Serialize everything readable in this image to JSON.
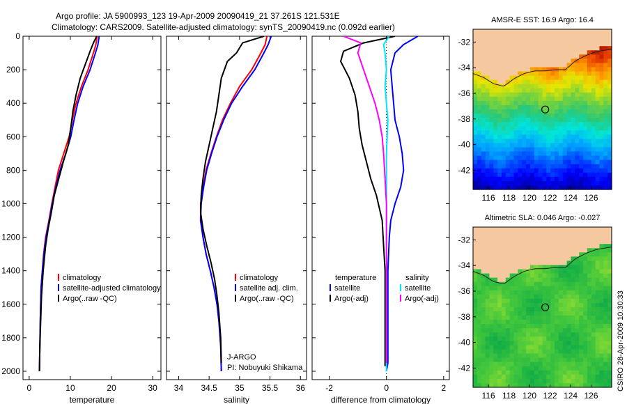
{
  "header": {
    "line1": "Argo profile: JA 5900993_123 19-Apr-2009 20090419_21 37.261S 121.531E",
    "line2": "Climatology: CARS2009. Satellite-adjusted climatology: synTS_20090419.nc (0.092d earlier)"
  },
  "credit": "CSIRO 28-Apr-2009 10:30:33",
  "colors": {
    "climatology": "#ff0000",
    "satellite": "#0000ff",
    "argo": "#000000",
    "sat_sal": "#00e5ff",
    "argo_sal": "#ff00ff",
    "land": "#f5c8a0"
  },
  "chart_data": [
    {
      "type": "line",
      "name": "temperature-profile",
      "xlabel": "temperature",
      "ylim": [
        2050,
        0
      ],
      "xlim": [
        -1.5,
        32
      ],
      "xticks": [
        "0",
        "10",
        "20",
        "30"
      ],
      "yticks": [
        "0",
        "200",
        "400",
        "600",
        "800",
        "1000",
        "1200",
        "1400",
        "1600",
        "1800",
        "2000"
      ],
      "legend": [
        "climatology",
        "satellite-adjusted climatology",
        "Argo(..raw -QC)"
      ],
      "series": [
        {
          "name": "climatology",
          "color": "#ff0000",
          "x": [
            16.5,
            16.2,
            15.6,
            14.3,
            12.7,
            11.4,
            10.5,
            9.7,
            8.4,
            7.1,
            6.3,
            5.5,
            4.8,
            4.0,
            3.5,
            3.2,
            2.9,
            2.7,
            2.6,
            2.5
          ],
          "y": [
            0,
            50,
            100,
            200,
            300,
            400,
            500,
            600,
            700,
            800,
            900,
            1000,
            1100,
            1200,
            1300,
            1400,
            1500,
            1700,
            1850,
            2000
          ]
        },
        {
          "name": "satellite-adjusted climatology",
          "color": "#0000ff",
          "x": [
            17.0,
            16.7,
            16.1,
            14.8,
            13.1,
            11.8,
            10.9,
            10.1,
            8.9,
            7.5,
            6.5,
            5.6,
            4.9,
            4.1,
            3.6,
            3.2,
            2.9,
            2.7,
            2.6,
            2.5
          ],
          "y": [
            0,
            50,
            100,
            200,
            300,
            400,
            500,
            600,
            700,
            800,
            900,
            1000,
            1100,
            1200,
            1300,
            1400,
            1500,
            1700,
            1850,
            2000
          ]
        },
        {
          "name": "Argo(..raw -QC)",
          "color": "#000000",
          "x": [
            16.4,
            15.6,
            14.8,
            13.9,
            12.4,
            11.4,
            10.6,
            10.1,
            9.5,
            8.3,
            7.2,
            6.1,
            5.4,
            4.6,
            4.0,
            3.4,
            3.0,
            2.8,
            2.6,
            2.5
          ],
          "y": [
            0,
            40,
            90,
            150,
            250,
            350,
            450,
            550,
            650,
            750,
            850,
            950,
            1050,
            1150,
            1250,
            1400,
            1550,
            1700,
            1850,
            2000
          ]
        }
      ]
    },
    {
      "type": "line",
      "name": "salinity-profile",
      "xlabel": "salinity",
      "ylim": [
        2050,
        0
      ],
      "xlim": [
        33.8,
        36.1
      ],
      "xticks": [
        "34",
        "34.5",
        "35",
        "35.5",
        "36"
      ],
      "legend": [
        "climatology",
        "satellite adj. clim.",
        "Argo(..raw -QC)"
      ],
      "annotation": [
        "J-ARGO",
        "PI: Nobuyuki Shikama"
      ],
      "series": [
        {
          "name": "climatology",
          "color": "#ff0000",
          "x": [
            35.45,
            35.42,
            35.35,
            35.2,
            35.0,
            34.85,
            34.72,
            34.62,
            34.53,
            34.45,
            34.4,
            34.36,
            34.36,
            34.4,
            34.45,
            34.52,
            34.58,
            34.63,
            34.66,
            34.69,
            34.7
          ],
          "y": [
            0,
            50,
            100,
            200,
            300,
            400,
            500,
            600,
            700,
            800,
            900,
            1000,
            1100,
            1200,
            1300,
            1400,
            1500,
            1600,
            1700,
            1850,
            2000
          ]
        },
        {
          "name": "satellite adj. clim.",
          "color": "#0000ff",
          "x": [
            35.52,
            35.47,
            35.4,
            35.25,
            35.05,
            34.87,
            34.74,
            34.63,
            34.54,
            34.46,
            34.41,
            34.37,
            34.36,
            34.4,
            34.45,
            34.52,
            34.58,
            34.63,
            34.66,
            34.69,
            34.7
          ],
          "y": [
            0,
            50,
            100,
            200,
            300,
            400,
            500,
            600,
            700,
            800,
            900,
            1000,
            1100,
            1200,
            1300,
            1400,
            1500,
            1600,
            1700,
            1850,
            2000
          ]
        },
        {
          "name": "Argo(..raw -QC)",
          "color": "#000000",
          "x": [
            35.4,
            35.05,
            34.95,
            34.8,
            34.7,
            34.66,
            34.62,
            34.56,
            34.5,
            34.44,
            34.4,
            34.37,
            34.36,
            34.4,
            34.46,
            34.53,
            34.59,
            34.63,
            34.66,
            34.69,
            34.7
          ],
          "y": [
            0,
            40,
            100,
            150,
            250,
            350,
            450,
            550,
            650,
            750,
            850,
            950,
            1050,
            1150,
            1250,
            1350,
            1450,
            1550,
            1650,
            1800,
            1950
          ]
        }
      ]
    },
    {
      "type": "line",
      "name": "difference-profile",
      "xlabel": "difference from climatology",
      "ylim": [
        2050,
        0
      ],
      "xlim": [
        -2.6,
        2.2
      ],
      "xticks": [
        "-2",
        "0",
        "2"
      ],
      "legend_groups": [
        {
          "title": "temperature",
          "items": [
            "satellite",
            "Argo(-adj)"
          ]
        },
        {
          "title": "salinity",
          "items": [
            "satellite",
            "Argo(-adj)"
          ]
        }
      ],
      "series": [
        {
          "name": "temperature satellite",
          "color": "#0000ff",
          "x": [
            1.1,
            0.6,
            0.3,
            0.15,
            0.2,
            0.25,
            0.3,
            0.45,
            0.55,
            0.6,
            0.5,
            0.3,
            0.15,
            0.1,
            0.05,
            0.05,
            0.05,
            0.05,
            0.0
          ],
          "y": [
            0,
            50,
            100,
            200,
            300,
            400,
            500,
            600,
            700,
            800,
            900,
            1000,
            1100,
            1200,
            1400,
            1600,
            1800,
            1950,
            2000
          ]
        },
        {
          "name": "temperature Argo(-adj)",
          "color": "#000000",
          "x": [
            0.3,
            -0.8,
            -1.5,
            -1.6,
            -1.3,
            -1.1,
            -1.0,
            -0.95,
            -0.85,
            -0.7,
            -0.55,
            -0.35,
            -0.15,
            -0.1,
            -0.05,
            -0.05,
            -0.05,
            -0.05
          ],
          "y": [
            0,
            40,
            90,
            150,
            250,
            350,
            450,
            550,
            650,
            750,
            850,
            950,
            1100,
            1250,
            1400,
            1600,
            1800,
            1970
          ]
        },
        {
          "name": "salinity satellite",
          "color": "#00e5ff",
          "x": [
            0.1,
            -0.1,
            -0.05,
            0.0,
            -0.05,
            0.0,
            0.05,
            0.0,
            0.0,
            0.0,
            0.0,
            0.0,
            0.0
          ],
          "y": [
            0,
            50,
            100,
            200,
            300,
            400,
            500,
            700,
            900,
            1100,
            1400,
            1700,
            2000
          ]
        },
        {
          "name": "salinity Argo(-adj)",
          "color": "#ff00ff",
          "x": [
            -1.5,
            -0.9,
            -1.0,
            -0.8,
            -0.6,
            -0.4,
            -0.25,
            -0.15,
            -0.1,
            -0.05,
            0.0,
            0.0,
            0.0,
            0.0
          ],
          "y": [
            0,
            40,
            100,
            200,
            300,
            400,
            500,
            600,
            700,
            850,
            1000,
            1300,
            1600,
            1950
          ]
        }
      ]
    },
    {
      "type": "heatmap",
      "name": "sst-map",
      "title": "AMSR-E SST: 16.9 Argo: 16.4",
      "xlim": [
        114.5,
        128
      ],
      "ylim": [
        -43.5,
        -31
      ],
      "xticks": [
        "116",
        "118",
        "120",
        "122",
        "124",
        "126"
      ],
      "yticks": [
        "-32",
        "-34",
        "-36",
        "-38",
        "-40",
        "-42"
      ],
      "marker": {
        "lon": 121.531,
        "lat": -37.261
      }
    },
    {
      "type": "heatmap",
      "name": "sla-map",
      "title": "Altimetric SLA: 0.046 Argo: -0.027",
      "xlim": [
        114.5,
        128
      ],
      "ylim": [
        -43.5,
        -31
      ],
      "xticks": [
        "116",
        "118",
        "120",
        "122",
        "124",
        "126"
      ],
      "yticks": [
        "-32",
        "-34",
        "-36",
        "-38",
        "-40",
        "-42"
      ],
      "marker": {
        "lon": 121.531,
        "lat": -37.261
      }
    }
  ]
}
